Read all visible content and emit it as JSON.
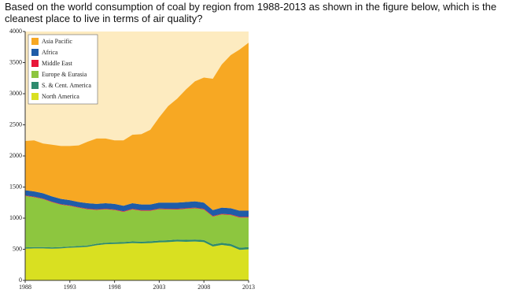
{
  "question": "Based on the world consumption of coal by region from 1988-2013 as shown in the figure below, which is the cleanest place to live in terms of air quality?",
  "chart_data": {
    "type": "stacked-area",
    "x": [
      1988,
      1989,
      1990,
      1991,
      1992,
      1993,
      1994,
      1995,
      1996,
      1997,
      1998,
      1999,
      2000,
      2001,
      2002,
      2003,
      2004,
      2005,
      2006,
      2007,
      2008,
      2009,
      2010,
      2011,
      2012,
      2013
    ],
    "xlim": [
      1988,
      2013
    ],
    "xticks": [
      1988,
      1993,
      1998,
      2003,
      2008,
      2013
    ],
    "ylim": [
      0,
      4000
    ],
    "yticks": [
      0,
      500,
      1000,
      1500,
      2000,
      2500,
      3000,
      3500,
      4000
    ],
    "legend": "upper-left",
    "series": [
      {
        "name": "North America",
        "color": "#d9e021",
        "values": [
          510,
          515,
          515,
          510,
          515,
          525,
          530,
          540,
          565,
          580,
          585,
          590,
          600,
          595,
          600,
          610,
          615,
          625,
          620,
          625,
          615,
          545,
          570,
          550,
          490,
          500
        ]
      },
      {
        "name": "S. & Cent. America",
        "color": "#2e8b6e",
        "values": [
          20,
          20,
          20,
          20,
          20,
          20,
          22,
          22,
          24,
          25,
          25,
          25,
          27,
          27,
          28,
          30,
          30,
          32,
          32,
          32,
          33,
          33,
          33,
          35,
          35,
          35
        ]
      },
      {
        "name": "Europe & Eurasia",
        "color": "#8dc63f",
        "values": [
          827,
          802,
          772,
          727,
          682,
          652,
          615,
          581,
          544,
          538,
          521,
          486,
          514,
          497,
          491,
          506,
          496,
          483,
          498,
          503,
          492,
          447,
          457,
          465,
          485,
          475
        ]
      },
      {
        "name": "Middle East",
        "color": "#e8173a",
        "values": [
          8,
          8,
          8,
          8,
          8,
          8,
          8,
          9,
          9,
          9,
          9,
          9,
          9,
          9,
          9,
          9,
          9,
          10,
          10,
          10,
          10,
          10,
          10,
          10,
          10,
          10
        ]
      },
      {
        "name": "Africa",
        "color": "#1f5ca8",
        "values": [
          85,
          85,
          85,
          85,
          85,
          85,
          85,
          88,
          88,
          88,
          90,
          90,
          90,
          92,
          92,
          95,
          100,
          100,
          100,
          100,
          100,
          95,
          100,
          100,
          100,
          100
        ]
      },
      {
        "name": "Asia Pacific",
        "color": "#f7a823",
        "values": [
          790,
          820,
          800,
          830,
          850,
          870,
          910,
          990,
          1050,
          1040,
          1020,
          1050,
          1100,
          1130,
          1200,
          1370,
          1550,
          1670,
          1810,
          1930,
          2010,
          2110,
          2300,
          2460,
          2590,
          2700
        ]
      }
    ]
  }
}
